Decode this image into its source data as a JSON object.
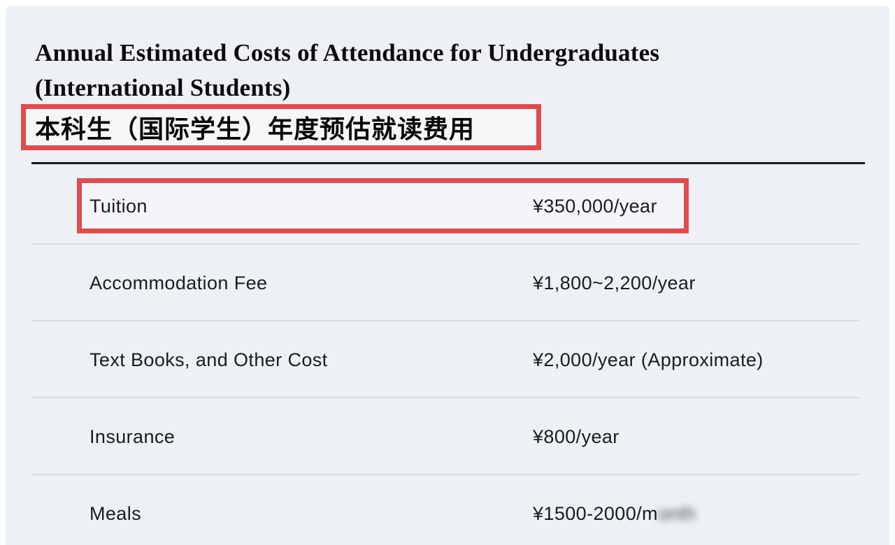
{
  "header": {
    "title_line1": "Annual Estimated Costs of Attendance for Undergraduates",
    "title_line2": "(International Students)",
    "subtitle_cn": "本科生（国际学生）年度预估就读费用"
  },
  "table": {
    "rows": [
      {
        "label": "Tuition",
        "value": "¥350,000/year",
        "highlighted": true
      },
      {
        "label": "Accommodation Fee",
        "value": "¥1,800~2,200/year"
      },
      {
        "label": "Text Books, and Other Cost",
        "value": "¥2,000/year (Approximate)"
      },
      {
        "label": "Insurance",
        "value": "¥800/year"
      },
      {
        "label": "Meals",
        "value": "¥1500-2000/month",
        "value_visible": "¥1500-2000/m",
        "value_blurred": "onth"
      }
    ]
  },
  "annotations": {
    "subtitle_box": "red rectangle around Chinese subtitle",
    "tuition_box": "red rectangle around Tuition row"
  },
  "colors": {
    "highlight": "#e14b4b",
    "bg": "#edf0f4",
    "text": "#191c22",
    "divider": "#d8dce2",
    "rule": "#17191d"
  }
}
